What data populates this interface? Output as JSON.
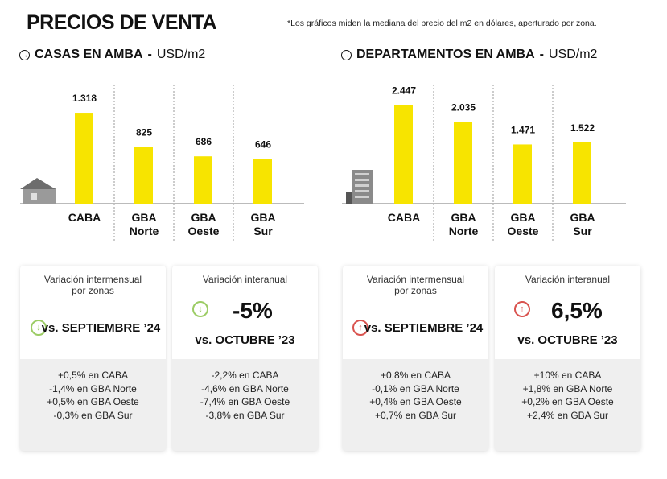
{
  "header": {
    "title": "PRECIOS DE VENTA",
    "note": "*Los gráficos miden  la mediana del precio del m2 en dólares, aperturado por zona."
  },
  "colors": {
    "bar": "#f7e400",
    "down": "#8bc34a",
    "up": "#d9534f"
  },
  "chart_data": [
    {
      "type": "bar",
      "title": "CASAS EN AMBA",
      "unit": "USD/m2",
      "categories": [
        "CABA",
        "GBA Norte",
        "GBA Oeste",
        "GBA Sur"
      ],
      "values": [
        1318,
        825,
        686,
        646
      ],
      "value_labels": [
        "1.318",
        "825",
        "686",
        "646"
      ],
      "icon": "house-icon"
    },
    {
      "type": "bar",
      "title": "DEPARTAMENTOS EN AMBA",
      "unit": "USD/m2",
      "categories": [
        "CABA",
        "GBA Norte",
        "GBA Oeste",
        "GBA Sur"
      ],
      "values": [
        2447,
        2035,
        1471,
        1522
      ],
      "value_labels": [
        "2.447",
        "2.035",
        "1.471",
        "1.522"
      ],
      "icon": "building-icon"
    }
  ],
  "sections": [
    {
      "title": "CASAS EN AMBA",
      "sep": " - ",
      "unit": "USD/m2"
    },
    {
      "title": "DEPARTAMENTOS EN AMBA",
      "sep": " - ",
      "unit": "USD/m2"
    }
  ],
  "cards": [
    {
      "label": "Variación intermensual por zonas",
      "direction": "down",
      "vs": "vs. SEPTIEMBRE ’24",
      "items": [
        "+0,5% en CABA",
        "-1,4% en GBA Norte",
        "+0,5% en GBA Oeste",
        "-0,3% en GBA Sur"
      ]
    },
    {
      "label": "Variación interanual",
      "direction": "down",
      "value": "-5%",
      "vs": "vs. OCTUBRE ’23",
      "items": [
        "-2,2% en CABA",
        "-4,6% en GBA Norte",
        "-7,4% en GBA Oeste",
        "-3,8% en GBA Sur"
      ]
    },
    {
      "label": "Variación intermensual por zonas",
      "direction": "up",
      "vs": "vs. SEPTIEMBRE ’24",
      "items": [
        "+0,8% en CABA",
        "-0,1% en GBA Norte",
        "+0,4% en GBA Oeste",
        "+0,7% en GBA Sur"
      ]
    },
    {
      "label": "Variación interanual",
      "direction": "up",
      "value": "6,5%",
      "vs": "vs. OCTUBRE ’23",
      "items": [
        "+10% en CABA",
        "+1,8% en GBA Norte",
        "+0,2% en GBA Oeste",
        "+2,4% en GBA Sur"
      ]
    }
  ]
}
